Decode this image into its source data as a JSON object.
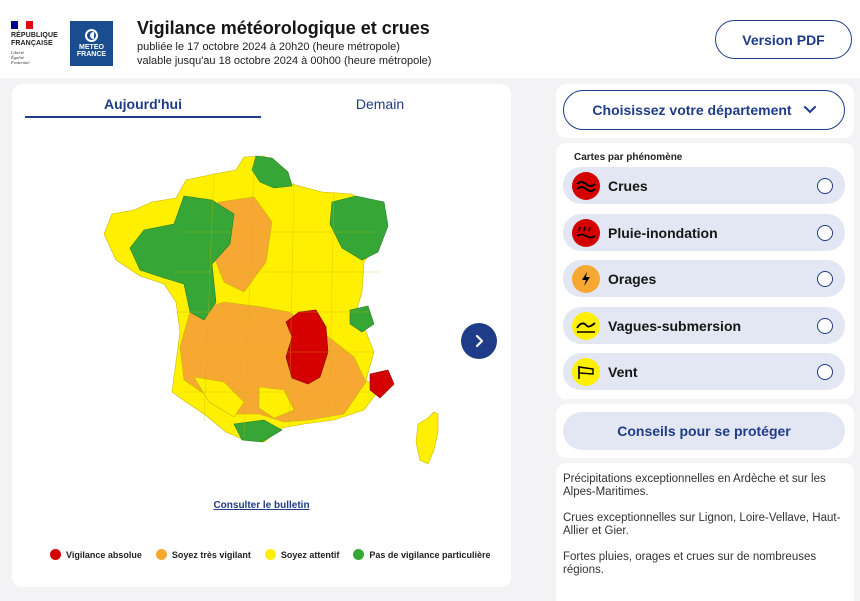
{
  "header": {
    "republic_name": [
      "RÉPUBLIQUE",
      "FRANÇAISE"
    ],
    "republic_motto": [
      "Liberté",
      "Égalité",
      "Fraternité"
    ],
    "meteo_logo": [
      "METEO",
      "FRANCE"
    ],
    "title": "Vigilance météorologique et crues",
    "published": "publiée le 17 octobre 2024 à 20h20 (heure métropole)",
    "valid_until": "valable jusqu'au 18 octobre 2024 à 00h00 (heure métropole)",
    "pdf_button": "Version PDF"
  },
  "colors": {
    "accent": "#1f3c88",
    "red": "#d40000",
    "orange": "#f6a833",
    "yellow": "#ffef00",
    "green": "#36a636"
  },
  "tabs": [
    {
      "label": "Aujourd'hui",
      "active": true
    },
    {
      "label": "Demain",
      "active": false
    }
  ],
  "map": {
    "bulletin_link": "Consulter le bulletin",
    "legend": [
      {
        "label": "Vigilance absolue",
        "color": "#d40000"
      },
      {
        "label": "Soyez très vigilant",
        "color": "#f6a833"
      },
      {
        "label": "Soyez attentif",
        "color": "#ffef00"
      },
      {
        "label": "Pas de vigilance particulière",
        "color": "#36a636"
      }
    ]
  },
  "department": {
    "button_label": "Choisissez votre département",
    "icon": "chevron-down-icon"
  },
  "phenomena": {
    "title": "Cartes par phénomène",
    "items": [
      {
        "label": "Crues",
        "icon": "crues-icon",
        "level_color": "#d40000"
      },
      {
        "label": "Pluie-inondation",
        "icon": "rain-flood-icon",
        "level_color": "#d40000"
      },
      {
        "label": "Orages",
        "icon": "thunderstorm-icon",
        "level_color": "#f6a833"
      },
      {
        "label": "Vagues-submersion",
        "icon": "waves-icon",
        "level_color": "#ffef00"
      },
      {
        "label": "Vent",
        "icon": "wind-icon",
        "level_color": "#ffef00"
      }
    ]
  },
  "advice_button": "Conseils pour se protéger",
  "summary": [
    "Précipitations exceptionnelles en Ardèche et sur les Alpes-Maritimes.",
    "Crues exceptionnelles sur Lignon, Loire-Vellave, Haut-Allier et Gier.",
    "Fortes pluies, orages et crues sur de nombreuses régions."
  ]
}
